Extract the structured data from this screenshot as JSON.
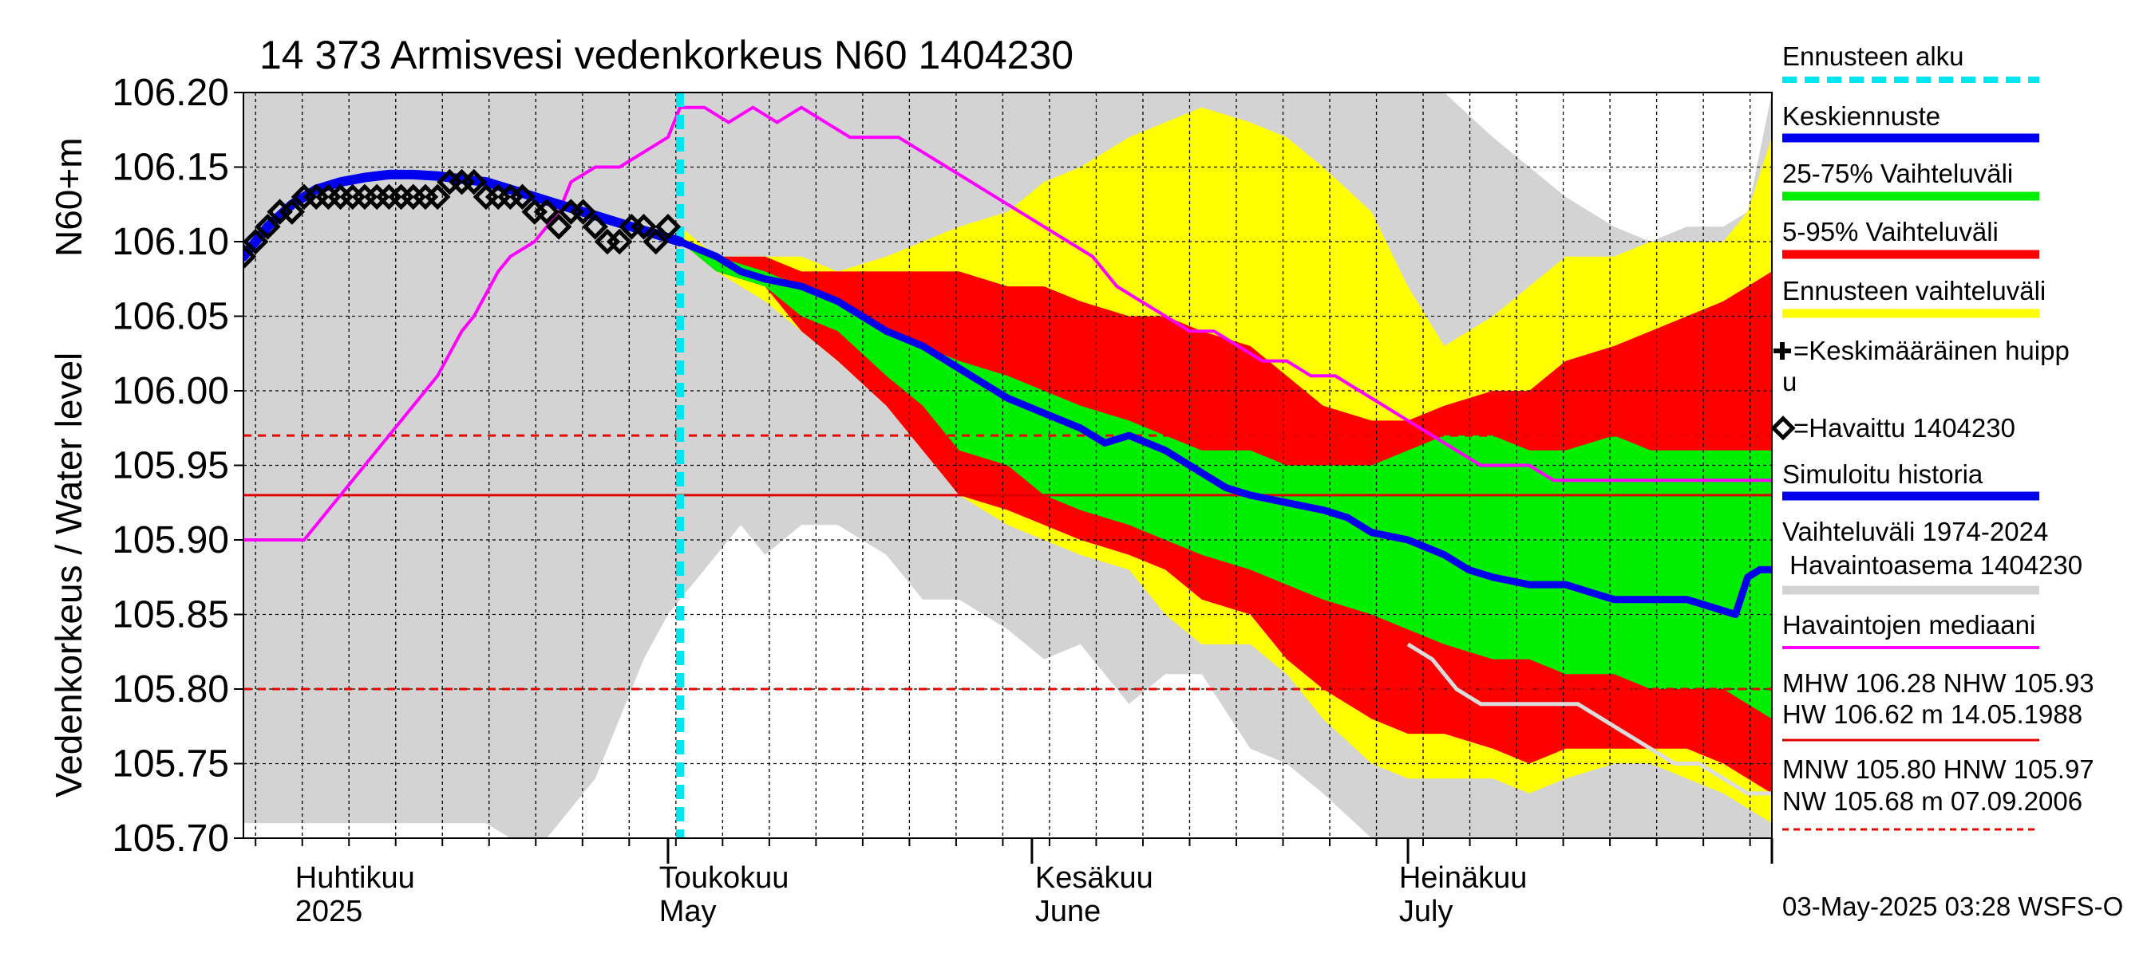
{
  "chart_data": {
    "type": "line",
    "title": "14 373 Armisvesi vedenkorkeus N60 1404230",
    "ylabel_left": "Vedenkorkeus / Water level",
    "ylabel_unit": "N60+m",
    "ylim": [
      105.7,
      106.2
    ],
    "yticks": [
      "106.20",
      "106.15",
      "106.10",
      "106.05",
      "106.00",
      "105.95",
      "105.90",
      "105.85",
      "105.80",
      "105.75",
      "105.70"
    ],
    "xlim_days": [
      -36,
      90
    ],
    "month_labels": [
      {
        "fi": "Huhtikuu",
        "en": "2025",
        "day": -32
      },
      {
        "fi": "Toukokuu",
        "en": "May",
        "day": -2
      },
      {
        "fi": "Kesäkuu",
        "en": "June",
        "day": 29
      },
      {
        "fi": "Heinäkuu",
        "en": "July",
        "day": 59
      }
    ],
    "forecast_start_day": 0,
    "reference_lines": [
      {
        "value": 105.97,
        "style": "dashed",
        "color": "#ee0000"
      },
      {
        "value": 105.93,
        "style": "solid",
        "color": "#dd0000"
      },
      {
        "value": 105.8,
        "style": "dashed",
        "color": "#ee0000"
      }
    ],
    "bands": {
      "historical_range": {
        "color": "#d3d3d3",
        "x": [
          -36,
          -16,
          -14,
          -11,
          -7,
          -5,
          -3,
          -1,
          0,
          2,
          5,
          7,
          10,
          13,
          17,
          20,
          23,
          27,
          30,
          33,
          37,
          40,
          43,
          47,
          50,
          53,
          57,
          60,
          63,
          67,
          70,
          73,
          77,
          80,
          83,
          86,
          88,
          90
        ],
        "upper": [
          106.2,
          106.2,
          106.2,
          106.2,
          106.2,
          106.2,
          106.2,
          106.2,
          106.2,
          106.2,
          106.2,
          106.2,
          106.2,
          106.2,
          106.2,
          106.2,
          106.2,
          106.2,
          106.2,
          106.2,
          106.2,
          106.2,
          106.2,
          106.2,
          106.2,
          106.2,
          106.2,
          106.2,
          106.2,
          106.17,
          106.15,
          106.13,
          106.11,
          106.1,
          106.11,
          106.11,
          106.12,
          106.2
        ],
        "lower": [
          105.71,
          105.71,
          105.7,
          105.7,
          105.74,
          105.78,
          105.82,
          105.85,
          105.86,
          105.88,
          105.91,
          105.89,
          105.91,
          105.91,
          105.89,
          105.86,
          105.86,
          105.84,
          105.82,
          105.83,
          105.79,
          105.81,
          105.81,
          105.76,
          105.75,
          105.73,
          105.7,
          105.7,
          105.7,
          105.7,
          105.7,
          105.7,
          105.7,
          105.7,
          105.7,
          105.7,
          105.7,
          105.7
        ]
      },
      "forecast_range": {
        "color": "#ffff00",
        "x": [
          0,
          3,
          7,
          10,
          13,
          17,
          20,
          23,
          27,
          30,
          33,
          37,
          40,
          43,
          47,
          50,
          53,
          57,
          60,
          63,
          67,
          70,
          73,
          77,
          80,
          83,
          86,
          88,
          90
        ],
        "upper": [
          106.11,
          106.09,
          106.09,
          106.09,
          106.08,
          106.09,
          106.1,
          106.11,
          106.12,
          106.14,
          106.15,
          106.17,
          106.18,
          106.19,
          106.18,
          106.17,
          106.15,
          106.12,
          106.07,
          106.03,
          106.05,
          106.07,
          106.09,
          106.09,
          106.1,
          106.1,
          106.1,
          106.12,
          106.17
        ],
        "lower": [
          106.1,
          106.08,
          106.06,
          106.04,
          106.02,
          106.0,
          105.97,
          105.93,
          105.91,
          105.9,
          105.89,
          105.88,
          105.85,
          105.83,
          105.83,
          105.81,
          105.78,
          105.75,
          105.74,
          105.74,
          105.74,
          105.73,
          105.74,
          105.75,
          105.75,
          105.74,
          105.73,
          105.72,
          105.71
        ]
      },
      "range_5_95": {
        "color": "#ff0000",
        "x": [
          0,
          3,
          7,
          10,
          13,
          17,
          20,
          23,
          27,
          30,
          33,
          37,
          40,
          43,
          47,
          50,
          53,
          57,
          60,
          63,
          67,
          70,
          73,
          77,
          80,
          83,
          86,
          88,
          90
        ],
        "upper": [
          106.1,
          106.09,
          106.09,
          106.08,
          106.08,
          106.08,
          106.08,
          106.08,
          106.07,
          106.07,
          106.06,
          106.05,
          106.05,
          106.04,
          106.03,
          106.01,
          105.99,
          105.98,
          105.98,
          105.99,
          106.0,
          106.0,
          106.02,
          106.03,
          106.04,
          106.05,
          106.06,
          106.07,
          106.08
        ],
        "lower": [
          106.1,
          106.08,
          106.07,
          106.04,
          106.02,
          105.99,
          105.96,
          105.93,
          105.92,
          105.91,
          105.9,
          105.89,
          105.88,
          105.86,
          105.85,
          105.82,
          105.8,
          105.78,
          105.77,
          105.77,
          105.76,
          105.75,
          105.76,
          105.76,
          105.76,
          105.76,
          105.75,
          105.74,
          105.73
        ]
      },
      "range_25_75": {
        "color": "#00ee00",
        "x": [
          0,
          3,
          7,
          10,
          13,
          17,
          20,
          23,
          27,
          30,
          33,
          37,
          40,
          43,
          47,
          50,
          53,
          57,
          60,
          63,
          67,
          70,
          73,
          77,
          80,
          83,
          86,
          88,
          90
        ],
        "upper": [
          106.1,
          106.09,
          106.08,
          106.07,
          106.06,
          106.04,
          106.03,
          106.02,
          106.01,
          106.0,
          105.99,
          105.98,
          105.97,
          105.96,
          105.96,
          105.95,
          105.95,
          105.95,
          105.96,
          105.97,
          105.97,
          105.96,
          105.96,
          105.97,
          105.96,
          105.96,
          105.96,
          105.96,
          105.96
        ],
        "lower": [
          106.1,
          106.08,
          106.07,
          106.05,
          106.04,
          106.01,
          105.99,
          105.96,
          105.95,
          105.93,
          105.92,
          105.91,
          105.9,
          105.89,
          105.88,
          105.87,
          105.86,
          105.85,
          105.84,
          105.83,
          105.82,
          105.82,
          105.81,
          105.81,
          105.8,
          105.8,
          105.8,
          105.79,
          105.78
        ]
      }
    },
    "series": [
      {
        "name": "Simuloitu historia",
        "color": "#0000ee",
        "x": [
          -36,
          -34,
          -32,
          -30,
          -28,
          -26,
          -24,
          -22,
          -20,
          -18,
          -16,
          -14,
          -12,
          -10,
          -8,
          -6,
          -4,
          -2,
          0
        ],
        "y": [
          106.09,
          106.11,
          106.125,
          106.135,
          106.14,
          106.143,
          106.145,
          106.145,
          106.144,
          106.142,
          106.14,
          106.135,
          106.13,
          106.125,
          106.12,
          106.115,
          106.11,
          106.105,
          106.1
        ]
      },
      {
        "name": "Keskiennuste",
        "color": "#0000ee",
        "x": [
          0,
          3,
          5,
          7,
          10,
          13,
          15,
          17,
          20,
          23,
          25,
          27,
          30,
          33,
          35,
          37,
          40,
          43,
          45,
          47,
          50,
          53,
          55,
          57,
          60,
          63,
          65,
          67,
          70,
          73,
          75,
          77,
          80,
          83,
          85,
          87,
          88,
          89,
          90
        ],
        "y": [
          106.1,
          106.09,
          106.08,
          106.075,
          106.07,
          106.06,
          106.05,
          106.04,
          106.03,
          106.015,
          106.005,
          105.995,
          105.985,
          105.975,
          105.965,
          105.97,
          105.96,
          105.945,
          105.935,
          105.93,
          105.925,
          105.92,
          105.915,
          105.905,
          105.9,
          105.89,
          105.88,
          105.875,
          105.87,
          105.87,
          105.865,
          105.86,
          105.86,
          105.86,
          105.855,
          105.85,
          105.875,
          105.88,
          105.88
        ]
      },
      {
        "name": "Havaintojen mediaani",
        "color": "#ff00ff",
        "x": [
          -36,
          -31,
          -29,
          -27,
          -25,
          -23,
          -21,
          -20,
          -18,
          -17,
          -15,
          -14,
          -12,
          -10,
          -9,
          -7,
          -5,
          -3,
          -1,
          0,
          2,
          4,
          6,
          8,
          10,
          12,
          14,
          16,
          18,
          20,
          22,
          24,
          26,
          28,
          30,
          32,
          34,
          36,
          38,
          40,
          42,
          44,
          46,
          48,
          50,
          52,
          54,
          56,
          58,
          60,
          62,
          64,
          66,
          68,
          70,
          72,
          74,
          76,
          78,
          80,
          82,
          84,
          86,
          88,
          90
        ],
        "y": [
          105.9,
          105.9,
          105.92,
          105.94,
          105.96,
          105.98,
          106.0,
          106.01,
          106.04,
          106.05,
          106.08,
          106.09,
          106.1,
          106.12,
          106.14,
          106.15,
          106.15,
          106.16,
          106.17,
          106.19,
          106.19,
          106.18,
          106.19,
          106.18,
          106.19,
          106.18,
          106.17,
          106.17,
          106.17,
          106.16,
          106.15,
          106.14,
          106.13,
          106.12,
          106.11,
          106.1,
          106.09,
          106.07,
          106.06,
          106.05,
          106.04,
          106.04,
          106.03,
          106.02,
          106.02,
          106.01,
          106.01,
          106.0,
          105.99,
          105.98,
          105.97,
          105.96,
          105.95,
          105.95,
          105.95,
          105.94,
          105.94,
          105.94,
          105.94,
          105.94,
          105.94,
          105.94,
          105.94,
          105.94,
          105.94
        ]
      },
      {
        "name": "Vaihteluväli lower (light)",
        "color": "#dcdcdc",
        "x": [
          60,
          62,
          64,
          66,
          68,
          70,
          72,
          74,
          76,
          78,
          80,
          82,
          84,
          86,
          88,
          90
        ],
        "y": [
          105.83,
          105.82,
          105.8,
          105.79,
          105.79,
          105.79,
          105.79,
          105.79,
          105.78,
          105.77,
          105.76,
          105.75,
          105.75,
          105.74,
          105.73,
          105.73
        ]
      }
    ],
    "observed": {
      "name": "Havaittu 1404230",
      "x": [
        -36,
        -35,
        -34,
        -33,
        -32,
        -31,
        -30,
        -29,
        -28,
        -27,
        -26,
        -25,
        -24,
        -23,
        -22,
        -21,
        -20,
        -19,
        -18,
        -17,
        -16,
        -15,
        -14,
        -13,
        -12,
        -11,
        -10,
        -9,
        -8,
        -7,
        -6,
        -5,
        -4,
        -3,
        -2,
        -1
      ],
      "y": [
        106.09,
        106.1,
        106.11,
        106.12,
        106.12,
        106.13,
        106.13,
        106.13,
        106.13,
        106.13,
        106.13,
        106.13,
        106.13,
        106.13,
        106.13,
        106.13,
        106.13,
        106.14,
        106.14,
        106.14,
        106.13,
        106.13,
        106.13,
        106.13,
        106.12,
        106.12,
        106.11,
        106.12,
        106.12,
        106.11,
        106.1,
        106.1,
        106.11,
        106.11,
        106.1,
        106.11
      ]
    }
  },
  "legend": {
    "forecast_start": "Ennusteen alku",
    "mean_forecast": "Keskiennuste",
    "range_25_75": "25-75% Vaihteluväli",
    "range_5_95": "5-95% Vaihteluväli",
    "forecast_range": "Ennusteen vaihteluväli",
    "mean_peak_line1": "=Keskimääräinen huipp",
    "mean_peak_line2": "u",
    "observed": "=Havaittu 1404230",
    "simulated": "Simuloitu historia",
    "hist_range_line1": "Vaihteluväli 1974-2024",
    "hist_range_line2": " Havaintoasema 1404230",
    "median": "Havaintojen mediaani",
    "mhw_line": "MHW 106.28 NHW 105.93",
    "hw_line": "HW 106.62 m 14.05.1988",
    "mnw_line": "MNW 105.80 HNW 105.97",
    "nw_line": "NW 105.68 m 07.09.2006",
    "footer": "03-May-2025 03:28 WSFS-O"
  }
}
